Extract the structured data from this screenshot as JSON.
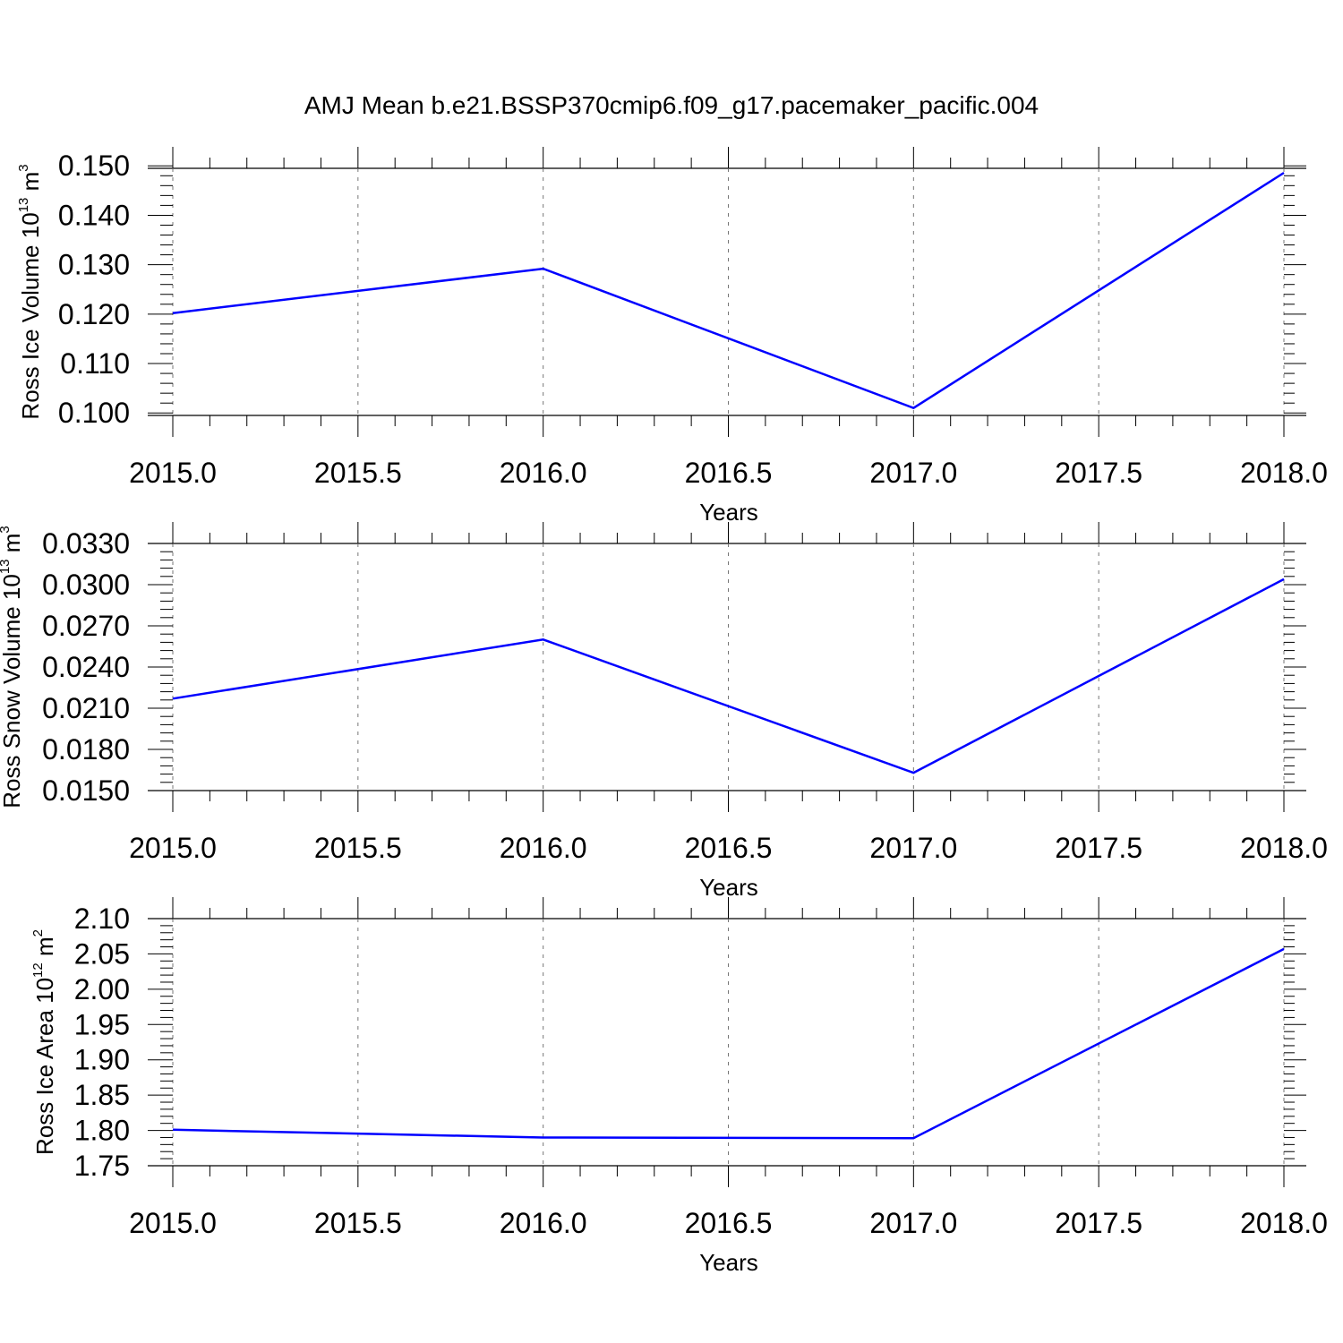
{
  "title": "AMJ Mean b.e21.BSSP370cmip6.f09_g17.pacemaker_pacific.004",
  "line_color": "#0000ff",
  "chart_data": [
    {
      "type": "line",
      "xlabel": "Years",
      "ylabel": {
        "text": "Ross Ice Volume 10",
        "sup": "13",
        "unit": " m",
        "unit_sup": "3"
      },
      "x_ticks": [
        "2015.0",
        "2015.5",
        "2016.0",
        "2016.5",
        "2017.0",
        "2017.5",
        "2018.0"
      ],
      "y_ticks": [
        "0.100",
        "0.110",
        "0.120",
        "0.130",
        "0.140",
        "0.150"
      ],
      "xlim": [
        2015.0,
        2018.0
      ],
      "ylim": [
        0.0995,
        0.1495
      ],
      "x": [
        2015.0,
        2016.0,
        2017.0,
        2018.0
      ],
      "values": [
        0.1202,
        0.1292,
        0.101,
        0.1486
      ]
    },
    {
      "type": "line",
      "xlabel": "Years",
      "ylabel": {
        "text": "Ross Snow Volume 10",
        "sup": "13",
        "unit": " m",
        "unit_sup": "3"
      },
      "x_ticks": [
        "2015.0",
        "2015.5",
        "2016.0",
        "2016.5",
        "2017.0",
        "2017.5",
        "2018.0"
      ],
      "y_ticks": [
        "0.0150",
        "0.0180",
        "0.0210",
        "0.0240",
        "0.0270",
        "0.0300",
        "0.0330"
      ],
      "xlim": [
        2015.0,
        2018.0
      ],
      "ylim": [
        0.015,
        0.033
      ],
      "x": [
        2015.0,
        2016.0,
        2017.0,
        2018.0
      ],
      "values": [
        0.0217,
        0.026,
        0.0163,
        0.0304
      ]
    },
    {
      "type": "line",
      "xlabel": "Years",
      "ylabel": {
        "text": "Ross Ice Area 10",
        "sup": "12",
        "unit": " m",
        "unit_sup": "2"
      },
      "x_ticks": [
        "2015.0",
        "2015.5",
        "2016.0",
        "2016.5",
        "2017.0",
        "2017.5",
        "2018.0"
      ],
      "y_ticks": [
        "1.75",
        "1.80",
        "1.85",
        "1.90",
        "1.95",
        "2.00",
        "2.05",
        "2.10"
      ],
      "xlim": [
        2015.0,
        2018.0
      ],
      "ylim": [
        1.75,
        2.1
      ],
      "x": [
        2015.0,
        2016.0,
        2017.0,
        2018.0
      ],
      "values": [
        1.801,
        1.79,
        1.789,
        2.057
      ]
    }
  ]
}
